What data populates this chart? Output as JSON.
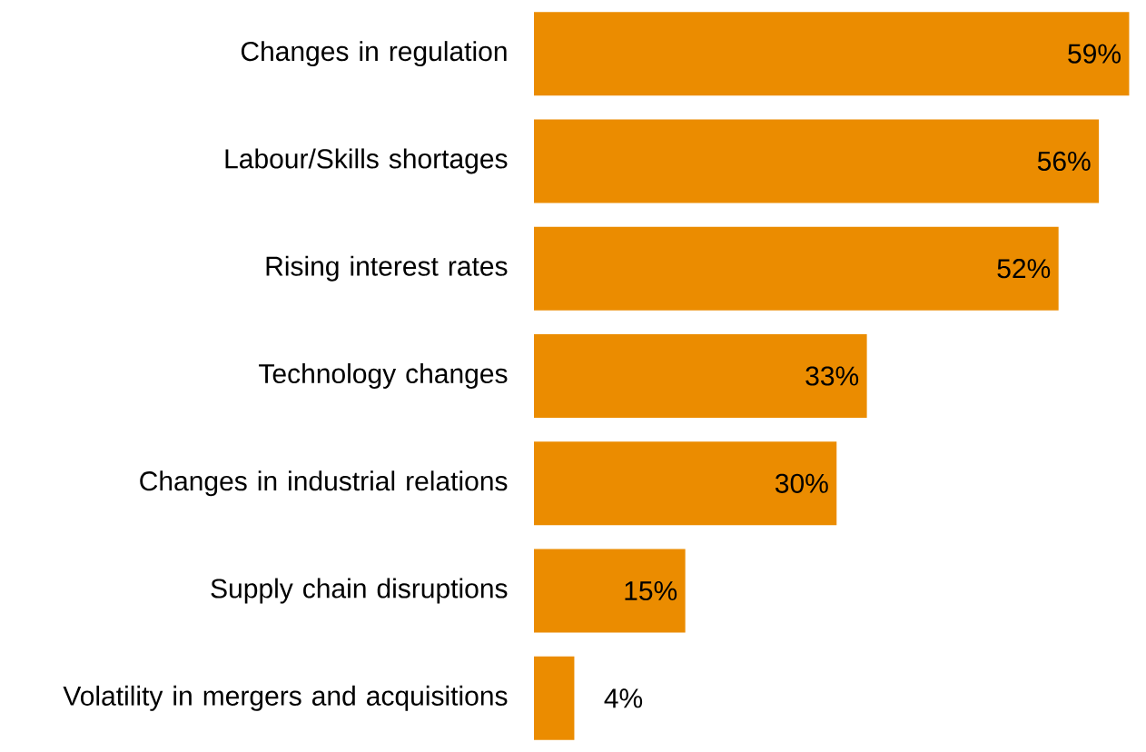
{
  "chart_data": {
    "type": "bar",
    "orientation": "horizontal",
    "categories": [
      "Changes in regulation",
      "Labour/Skills shortages",
      "Rising interest rates",
      "Technology changes",
      "Changes in industrial relations",
      "Supply chain disruptions",
      "Volatility in mergers and acquisitions"
    ],
    "values": [
      59,
      56,
      52,
      33,
      30,
      15,
      4
    ],
    "value_labels": [
      "59%",
      "56%",
      "52%",
      "33%",
      "30%",
      "15%",
      "4%"
    ],
    "color": "#eb8c00"
  }
}
